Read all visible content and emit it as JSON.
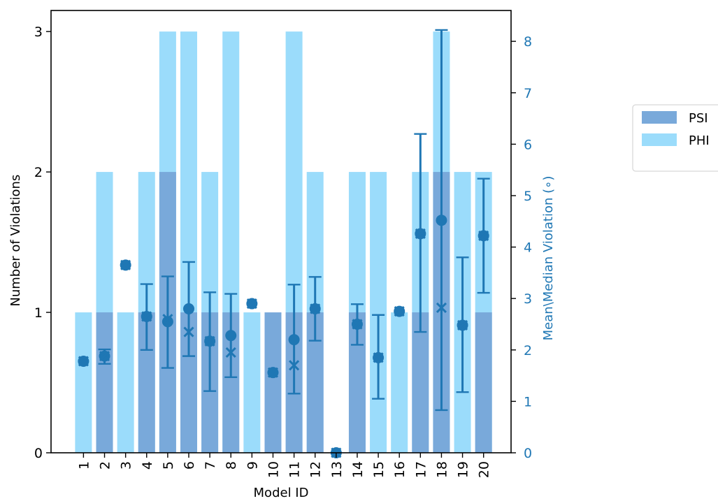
{
  "chart_data": {
    "type": "bar",
    "categories": [
      "1",
      "2",
      "3",
      "4",
      "5",
      "6",
      "7",
      "8",
      "9",
      "10",
      "11",
      "12",
      "13",
      "14",
      "15",
      "16",
      "17",
      "18",
      "19",
      "20"
    ],
    "xlabel": "Model ID",
    "ylabel": "Number of Violations",
    "ylabel_right": "Mean\\Median Violation ($^\\circ$)",
    "ylim": [
      0,
      3.15
    ],
    "ylim_right": [
      0,
      8.6
    ],
    "yticks": [
      0,
      1,
      2,
      3
    ],
    "yticks_right": [
      0,
      1,
      2,
      3,
      4,
      5,
      6,
      7,
      8
    ],
    "legend_position": "right",
    "series": [
      {
        "name": "PSI",
        "color": "#79a9da",
        "values": [
          0,
          1,
          0,
          1,
          2,
          1,
          1,
          1,
          0,
          1,
          1,
          1,
          0,
          1,
          0,
          0,
          1,
          2,
          0,
          1
        ]
      },
      {
        "name": "PHI",
        "color": "#9bdcfb",
        "values": [
          1,
          2,
          1,
          2,
          3,
          3,
          2,
          3,
          1,
          0,
          3,
          2,
          0,
          2,
          2,
          1,
          2,
          3,
          2,
          2
        ]
      }
    ],
    "violation_stats": {
      "axis": "right",
      "color": "#1f77b4",
      "mean": [
        1.78,
        1.88,
        3.65,
        2.65,
        2.55,
        2.8,
        2.17,
        2.28,
        2.9,
        1.56,
        2.2,
        2.8,
        0.0,
        2.5,
        1.85,
        2.75,
        4.26,
        4.52,
        2.48,
        4.22
      ],
      "median": [
        1.78,
        1.88,
        3.65,
        2.65,
        2.6,
        2.35,
        2.17,
        1.95,
        2.9,
        1.56,
        1.7,
        2.8,
        0.0,
        2.5,
        1.85,
        2.75,
        4.26,
        2.82,
        2.48,
        4.22
      ],
      "err_low": [
        1.78,
        1.73,
        3.65,
        2.0,
        1.65,
        1.88,
        1.2,
        1.47,
        2.9,
        1.56,
        1.15,
        2.18,
        0.0,
        2.1,
        1.05,
        2.75,
        2.35,
        0.83,
        1.18,
        3.11
      ],
      "err_high": [
        1.78,
        2.01,
        3.65,
        3.28,
        3.43,
        3.71,
        3.12,
        3.09,
        2.9,
        1.56,
        3.27,
        3.42,
        0.0,
        2.89,
        2.68,
        2.75,
        6.2,
        8.22,
        3.8,
        5.33
      ]
    }
  }
}
